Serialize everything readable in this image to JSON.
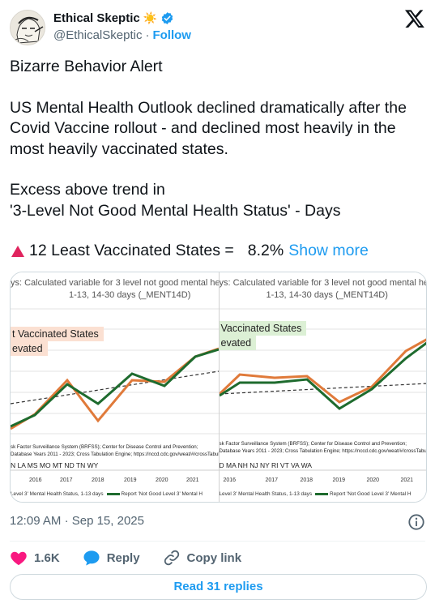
{
  "author": {
    "display_name": "Ethical Skeptic",
    "handle": "@EthicalSkeptic",
    "separator": "·",
    "follow_label": "Follow",
    "avatar_icon": "skeptic-sketch-avatar",
    "badge_emoji": "☀️",
    "verified_color": "#1d9bf0"
  },
  "platform_icon": "x-logo-icon",
  "tweet": {
    "line1": "Bizarre Behavior Alert",
    "line2": "US Mental Health Outlook declined dramatically after the Covid Vaccine rollout - and declined most heavily in the most heavily vaccinated states.",
    "line3a": "Excess above trend in",
    "line3b": "'3-Level Not Good Mental Health Status' - Days",
    "least_label": "12 Least Vaccinated States =",
    "least_value": "8.2%",
    "show_more": "Show more"
  },
  "charts": {
    "left": {
      "title1": "ys: Calculated variable for 3 level not good mental he",
      "title2": "1-13, 14-30 days (_MENT14D)",
      "tag1": "t Vaccinated States",
      "tag2": "evated",
      "tag_color": "#fbe0d2",
      "source1": "sk Factor Surveillance System (BRFSS); Center for Disease Control and Prevention;",
      "source2": "Database Years 2011 - 2023;  Cross Tabulation Engine; https://nccd.cdc.gov/weat/#/crossTabulati",
      "states": "N LA MS MO MT ND TN WY",
      "years": [
        "2016",
        "2017",
        "2018",
        "2019",
        "2020",
        "2021"
      ],
      "legend1": "Level 3' Mental Health Status, 1-13 days",
      "legend2": "Report 'Not Good Level 3' Mental H"
    },
    "right": {
      "title1": "ys: Calculated variable for 3 level not good mental he",
      "title2": "1-13, 14-30 days (_MENT14D)",
      "tag1": "Vaccinated States",
      "tag2": "evated",
      "tag_color": "#dcf0d5",
      "source1": "sk Factor Surveillance System (BRFSS); Center for Disease Control and Prevention;",
      "source2": "Database Years 2011 - 2023;  Cross Tabulation Engine; https://nccd.cdc.gov/weat/#/crossTabulat",
      "states": "D MA NH NJ NY RI VT VA WA",
      "years": [
        "2016",
        "2017",
        "2018",
        "2019",
        "2020",
        "2021"
      ],
      "legend1": "Level 3' Mental Health Status, 1-13 days",
      "legend2": "Report 'Not Good Level 3' Mental H"
    }
  },
  "chart_colors": {
    "orange": "#e07a3a",
    "green": "#1e6b2e",
    "trend": "#333333"
  },
  "meta": {
    "time": "12:09 AM",
    "separator": "·",
    "date": "Sep 15, 2025"
  },
  "actions": {
    "like_count": "1.6K",
    "reply_label": "Reply",
    "copy_label": "Copy link",
    "like_color": "#f91880",
    "reply_color": "#1d9bf0"
  },
  "read_replies": "Read 31 replies"
}
